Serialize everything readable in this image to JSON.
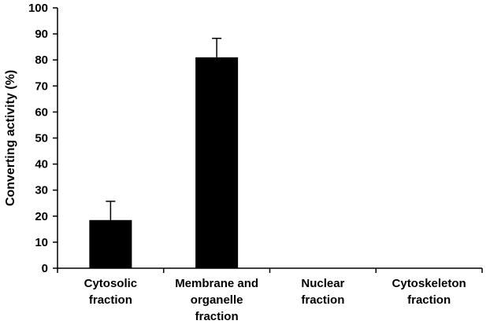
{
  "chart_data": {
    "type": "bar",
    "categories": [
      [
        "Cytosolic",
        "fraction"
      ],
      [
        "Membrane and",
        "organelle",
        "fraction"
      ],
      [
        "Nuclear",
        "fraction"
      ],
      [
        "Cytoskeleton",
        "fraction"
      ]
    ],
    "values": [
      18.5,
      81,
      0,
      0
    ],
    "errors": [
      7.2,
      7.3,
      0,
      0
    ],
    "ylabel": "Converting activity (%)",
    "xlabel": "",
    "ylim": [
      0,
      100
    ],
    "yticks": [
      0,
      10,
      20,
      30,
      40,
      50,
      60,
      70,
      80,
      90,
      100
    ],
    "grid": false,
    "legend": "none",
    "bar_color": "#000000"
  }
}
